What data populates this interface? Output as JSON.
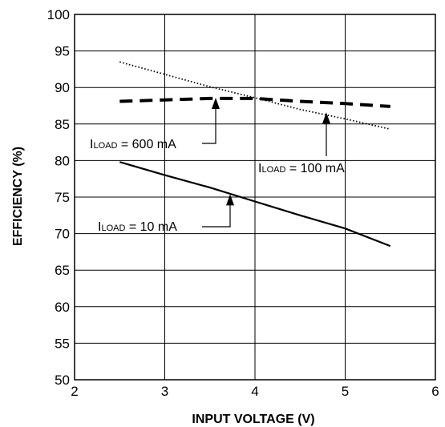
{
  "chart_data": {
    "type": "line",
    "title": "",
    "xlabel": "INPUT VOLTAGE (V)",
    "ylabel": "EFFICIENCY (%)",
    "xlim": [
      2,
      6
    ],
    "ylim": [
      50,
      100
    ],
    "xticks": [
      2,
      3,
      4,
      5,
      6
    ],
    "yticks": [
      50,
      55,
      60,
      65,
      70,
      75,
      80,
      85,
      90,
      95,
      100
    ],
    "grid": true,
    "series": [
      {
        "name": "ILOAD = 10 mA",
        "style": "solid",
        "x": [
          2.5,
          3.0,
          3.5,
          4.0,
          4.5,
          5.0,
          5.5
        ],
        "y": [
          79.8,
          78.0,
          76.3,
          74.4,
          72.5,
          70.7,
          68.3
        ]
      },
      {
        "name": "ILOAD = 100 mA",
        "style": "dotted",
        "x": [
          2.5,
          3.0,
          3.5,
          4.0,
          4.5,
          5.0,
          5.5
        ],
        "y": [
          93.5,
          91.8,
          90.1,
          88.6,
          87.0,
          85.7,
          84.3
        ]
      },
      {
        "name": "ILOAD = 600 mA",
        "style": "dashed",
        "x": [
          2.5,
          3.0,
          3.5,
          4.0,
          4.5,
          5.0,
          5.5
        ],
        "y": [
          88.1,
          88.3,
          88.5,
          88.5,
          88.1,
          87.8,
          87.4
        ]
      }
    ],
    "annotations": [
      {
        "id": "a600",
        "prefix": "I",
        "sub": "LOAD",
        "suffix": " = 600 mA",
        "target": [
          3.58,
          88.6
        ]
      },
      {
        "id": "a100",
        "prefix": "I",
        "sub": "LOAD",
        "suffix": " = 100 mA",
        "target": [
          4.78,
          86.6
        ]
      },
      {
        "id": "a10",
        "prefix": "I",
        "sub": "LOAD",
        "suffix": " = 10 mA",
        "target": [
          3.72,
          75.4
        ]
      }
    ]
  }
}
